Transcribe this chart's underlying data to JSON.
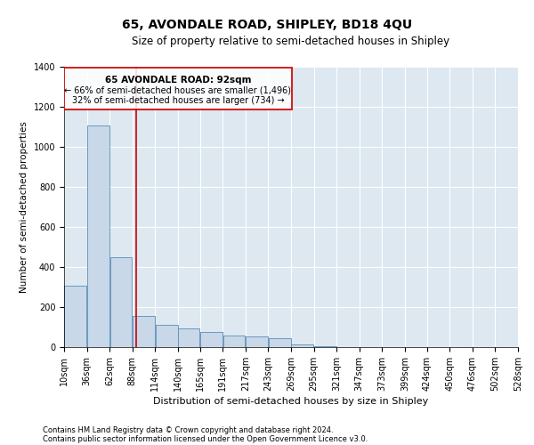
{
  "title": "65, AVONDALE ROAD, SHIPLEY, BD18 4QU",
  "subtitle": "Size of property relative to semi-detached houses in Shipley",
  "xlabel": "Distribution of semi-detached houses by size in Shipley",
  "ylabel": "Number of semi-detached properties",
  "footnote1": "Contains HM Land Registry data © Crown copyright and database right 2024.",
  "footnote2": "Contains public sector information licensed under the Open Government Licence v3.0.",
  "annotation_title": "65 AVONDALE ROAD: 92sqm",
  "annotation_line1": "← 66% of semi-detached houses are smaller (1,496)",
  "annotation_line2": "32% of semi-detached houses are larger (734) →",
  "property_size": 92,
  "bin_edges": [
    10,
    36,
    62,
    88,
    114,
    140,
    165,
    191,
    217,
    243,
    269,
    295,
    321,
    347,
    373,
    399,
    424,
    450,
    476,
    502,
    528
  ],
  "bar_heights": [
    305,
    1105,
    450,
    155,
    110,
    95,
    75,
    58,
    55,
    45,
    15,
    5,
    0,
    0,
    0,
    0,
    0,
    0,
    0,
    0
  ],
  "bar_color": "#c8d8e8",
  "bar_edge_color": "#5b8db8",
  "red_line_color": "#cc0000",
  "annotation_box_color": "#cc0000",
  "background_color": "#dde8f0",
  "grid_color": "#ffffff",
  "ylim": [
    0,
    1400
  ],
  "yticks": [
    0,
    200,
    400,
    600,
    800,
    1000,
    1200,
    1400
  ],
  "title_fontsize": 10,
  "subtitle_fontsize": 8.5,
  "ylabel_fontsize": 7.5,
  "xlabel_fontsize": 8,
  "tick_fontsize": 7,
  "annot_title_fontsize": 7.5,
  "annot_text_fontsize": 7,
  "footnote_fontsize": 6
}
